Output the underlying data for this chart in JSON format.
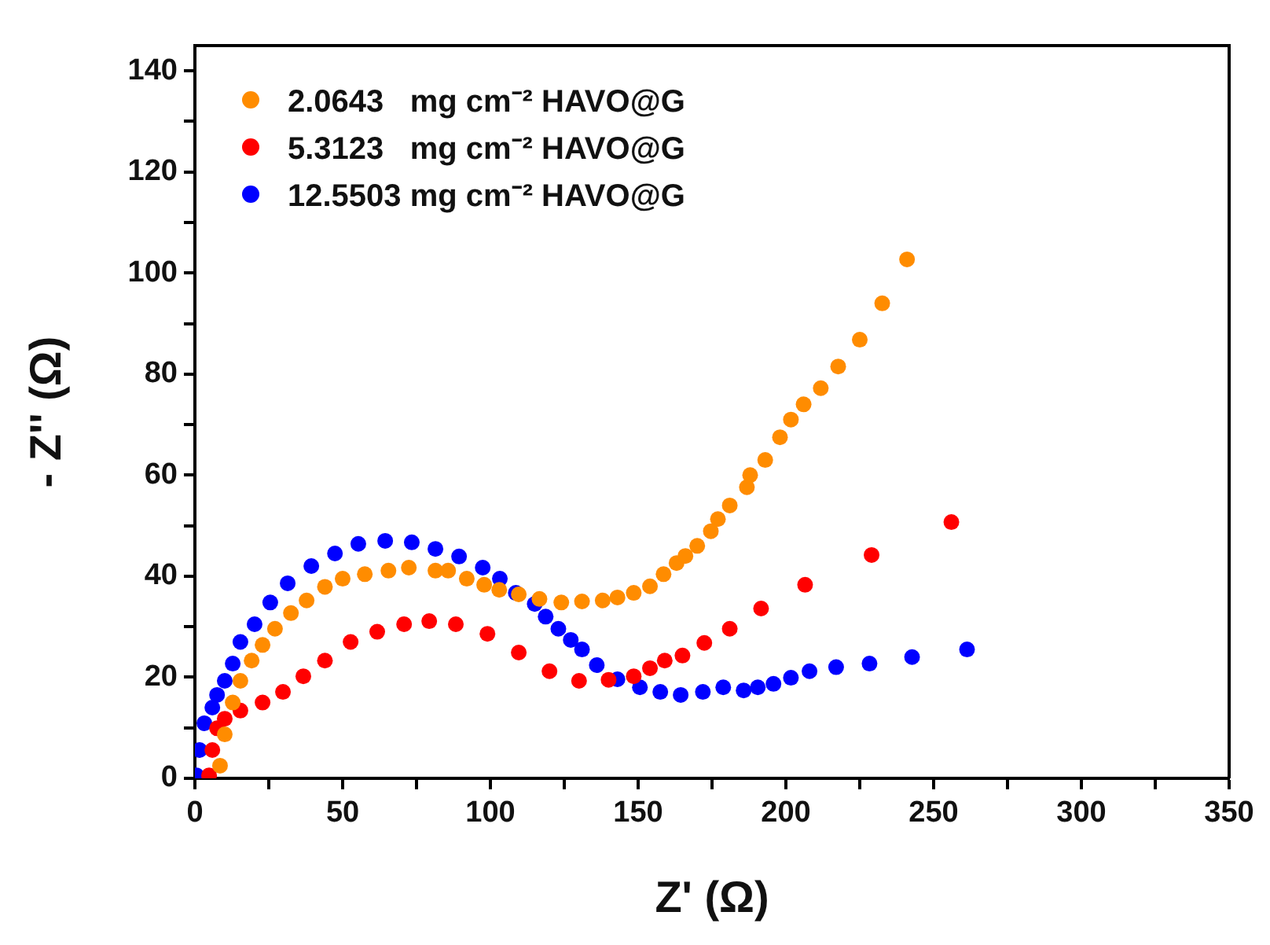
{
  "chart_data": {
    "type": "scatter",
    "xlabel": "Z' (Ω)",
    "ylabel": "- Z'' (Ω)",
    "xlim": [
      0,
      350
    ],
    "ylim": [
      0,
      145
    ],
    "xticks": [
      0,
      {
        "value": 25,
        "label": null
      },
      50,
      {
        "value": 75,
        "label": null
      },
      100,
      {
        "value": 125,
        "label": null
      },
      150,
      {
        "value": 175,
        "label": null
      },
      200,
      {
        "value": 225,
        "label": null
      },
      250,
      {
        "value": 275,
        "label": null
      },
      300,
      {
        "value": 325,
        "label": null
      },
      350
    ],
    "yticks": [
      0,
      {
        "value": 10,
        "label": null
      },
      20,
      {
        "value": 30,
        "label": null
      },
      40,
      {
        "value": 50,
        "label": null
      },
      60,
      {
        "value": 70,
        "label": null
      },
      80,
      {
        "value": 90,
        "label": null
      },
      100,
      {
        "value": 110,
        "label": null
      },
      120,
      {
        "value": 130,
        "label": null
      },
      140
    ],
    "grid": false,
    "legend": "top left",
    "marker": "circle",
    "series": [
      {
        "name": "2.0643   mg cm⁻² HAVO@G",
        "color": "#ff8c00",
        "x": [
          8.5,
          10.1,
          12.8,
          15.4,
          19.2,
          22.9,
          27.1,
          32.5,
          37.8,
          44,
          50,
          57.5,
          65.5,
          72.4,
          81.4,
          85.7,
          92,
          97.9,
          103,
          109.6,
          116.6,
          124,
          131,
          138,
          143,
          148.5,
          154,
          158.6,
          163,
          166,
          170,
          174.6,
          177,
          181,
          186.8,
          187.9,
          193,
          198,
          201.7,
          206,
          211.8,
          217.7,
          225,
          232.6,
          241
        ],
        "values": [
          2.5,
          8.7,
          15,
          19.3,
          23.3,
          26.4,
          29.6,
          32.7,
          35.2,
          37.9,
          39.5,
          40.4,
          41.1,
          41.7,
          41.1,
          41.1,
          39.5,
          38.3,
          37.3,
          36.4,
          35.5,
          34.8,
          35,
          35.2,
          35.8,
          36.7,
          38,
          40.4,
          42.6,
          44,
          46,
          48.9,
          51.3,
          54,
          57.6,
          60,
          63,
          67.5,
          71,
          74,
          77.2,
          81.5,
          86.8,
          94,
          102.7
        ]
      },
      {
        "name": "5.3123   mg cm⁻² HAVO@G",
        "color": "#ff0000",
        "x": [
          4.8,
          5.9,
          7.5,
          10.1,
          15.4,
          22.9,
          29.8,
          36.7,
          44,
          52.7,
          61.7,
          70.8,
          79.3,
          88.3,
          99,
          109.6,
          120,
          130,
          140,
          148.5,
          154,
          159,
          165,
          172.4,
          181,
          191.6,
          206.5,
          229,
          256
        ],
        "values": [
          0.6,
          5.6,
          9.9,
          11.8,
          13.4,
          15,
          17.1,
          20.2,
          23.3,
          27,
          29,
          30.5,
          31.1,
          30.5,
          28.6,
          24.9,
          21.2,
          19.3,
          19.5,
          20.2,
          21.8,
          23.3,
          24.3,
          26.8,
          29.6,
          33.6,
          38.3,
          44.2,
          50.7
        ]
      },
      {
        "name": "12.5503 mg cm⁻² HAVO@G",
        "color": "#0000ff",
        "x": [
          0.5,
          1.6,
          3.2,
          5.9,
          7.5,
          10.1,
          12.8,
          15.4,
          20.2,
          25.5,
          31.4,
          39.4,
          47.4,
          55.3,
          64.4,
          73.4,
          81.4,
          89.4,
          97.4,
          103.2,
          108.6,
          115,
          118.7,
          123,
          127.2,
          131,
          136,
          143,
          150.6,
          157.5,
          164.4,
          171.9,
          178.8,
          185.7,
          190.5,
          195.8,
          201.7,
          208,
          217,
          228.3,
          242.7,
          261.3
        ],
        "values": [
          0.6,
          5.6,
          10.9,
          14,
          16.5,
          19.3,
          22.7,
          27,
          30.5,
          34.8,
          38.6,
          42,
          44.5,
          46.4,
          47,
          46.7,
          45.4,
          43.9,
          41.7,
          39.5,
          36.7,
          34.5,
          32,
          29.6,
          27.4,
          25.5,
          22.4,
          19.6,
          18,
          17.1,
          16.5,
          17.1,
          18,
          17.4,
          18,
          18.7,
          19.9,
          21.2,
          22,
          22.7,
          24,
          25.5
        ]
      }
    ]
  }
}
